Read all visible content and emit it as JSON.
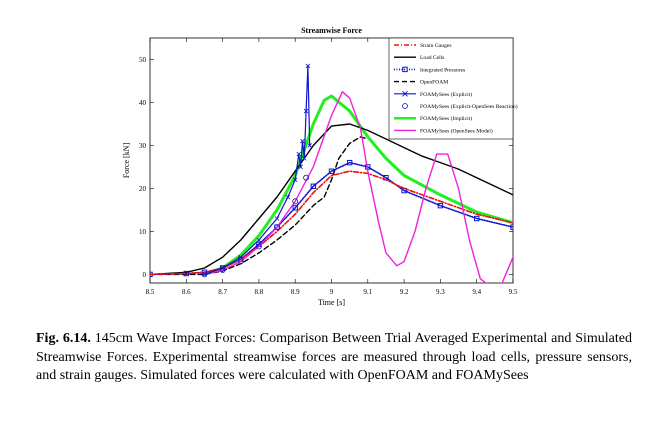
{
  "chart_data": {
    "type": "line",
    "title": "Streamwise Force",
    "xlabel": "Time [s]",
    "ylabel": "Force [kN]",
    "xlim": [
      8.5,
      9.5
    ],
    "ylim": [
      -2,
      55
    ],
    "xticks": [
      "8.5",
      "8.6",
      "8.7",
      "8.8",
      "8.9",
      "9",
      "9.1",
      "9.2",
      "9.3",
      "9.4",
      "9.5"
    ],
    "yticks": [
      "0",
      "10",
      "20",
      "30",
      "40",
      "50"
    ],
    "grid": false,
    "legend_position": "top-right",
    "series": [
      {
        "name": "Strain Gauges",
        "color": "#ee1111",
        "style": "dashdot",
        "x": [
          8.5,
          8.6,
          8.65,
          8.7,
          8.75,
          8.8,
          8.85,
          8.9,
          8.95,
          9.0,
          9.05,
          9.1,
          9.15,
          9.2,
          9.3,
          9.4,
          9.5
        ],
        "y": [
          0,
          0.2,
          0.5,
          1.5,
          3.5,
          6.5,
          10,
          14,
          19,
          23,
          24,
          23.5,
          22,
          20,
          17,
          14,
          12
        ]
      },
      {
        "name": "Load Cells",
        "color": "#000000",
        "style": "solid",
        "x": [
          8.5,
          8.6,
          8.65,
          8.7,
          8.75,
          8.8,
          8.85,
          8.9,
          8.95,
          9.0,
          9.05,
          9.1,
          9.15,
          9.2,
          9.25,
          9.3,
          9.35,
          9.4,
          9.45,
          9.5
        ],
        "y": [
          0,
          0.5,
          1.5,
          4,
          8,
          13,
          18,
          24,
          30,
          34.5,
          35,
          33.5,
          31.5,
          29.5,
          27.5,
          26,
          24.5,
          22.5,
          20.5,
          18.5
        ]
      },
      {
        "name": "Integrated Pressures",
        "color": "#0a16cc",
        "style": "dotted",
        "marker": "square",
        "x": [
          8.5,
          8.6,
          8.65,
          8.7,
          8.75,
          8.8,
          8.85,
          8.9,
          8.95,
          9.0,
          9.05,
          9.1,
          9.15,
          9.2,
          9.3,
          9.4,
          9.5
        ],
        "y": [
          0,
          0.2,
          0.5,
          1.5,
          3.5,
          7,
          11,
          15.5,
          20.5,
          24,
          26,
          25,
          22.5,
          19.5,
          16,
          13,
          11
        ]
      },
      {
        "name": "OpenFOAM",
        "color": "#000000",
        "style": "dashed",
        "x": [
          8.5,
          8.65,
          8.7,
          8.75,
          8.8,
          8.85,
          8.9,
          8.95,
          8.98,
          9.0,
          9.02,
          9.05,
          9.08,
          9.1
        ],
        "y": [
          0,
          0,
          0.8,
          2.5,
          5,
          8,
          11.5,
          16,
          18,
          22,
          27,
          30.5,
          32,
          31.5
        ]
      },
      {
        "name": "FOAMySees (Explicit)",
        "color": "#0a16cc",
        "style": "solid",
        "marker": "x",
        "x": [
          8.65,
          8.7,
          8.75,
          8.8,
          8.85,
          8.88,
          8.9,
          8.91,
          8.915,
          8.92,
          8.925,
          8.93,
          8.935,
          8.94
        ],
        "y": [
          0,
          1.5,
          4,
          8,
          13,
          18,
          22,
          28,
          25,
          31,
          27,
          38,
          48.5,
          30
        ]
      },
      {
        "name": "FOAMySees (Explicit-OpenSees Reaction)",
        "color": "#0a16cc",
        "style": "none",
        "marker": "circle",
        "x": [
          8.65,
          8.7,
          8.75,
          8.8,
          8.85,
          8.9,
          8.93
        ],
        "y": [
          0,
          1,
          3,
          6.5,
          11,
          17,
          22.5
        ]
      },
      {
        "name": "FOAMySees (Implicit)",
        "color": "#22ee22",
        "style": "solid",
        "x": [
          8.65,
          8.7,
          8.75,
          8.8,
          8.85,
          8.9,
          8.95,
          8.98,
          9.0,
          9.05,
          9.1,
          9.15,
          9.2,
          9.3,
          9.4,
          9.5
        ],
        "y": [
          0,
          1.5,
          4.5,
          9,
          15,
          23,
          35,
          40.5,
          41.5,
          38,
          32,
          27,
          23,
          18.5,
          14.5,
          12
        ]
      },
      {
        "name": "FOAMySees (OpenSees Model)",
        "color": "#ee22dd",
        "style": "solid",
        "x": [
          8.65,
          8.7,
          8.75,
          8.8,
          8.85,
          8.9,
          8.95,
          9.0,
          9.03,
          9.05,
          9.08,
          9.1,
          9.13,
          9.15,
          9.18,
          9.2,
          9.23,
          9.26,
          9.29,
          9.32,
          9.35,
          9.38,
          9.41,
          9.44,
          9.47,
          9.5
        ],
        "y": [
          0,
          1,
          3,
          6.5,
          11,
          17,
          25,
          37,
          42.5,
          41,
          34,
          24,
          12,
          5,
          2,
          3,
          10,
          20,
          28,
          28,
          20,
          8,
          -1,
          -3,
          -2,
          4
        ]
      }
    ]
  },
  "caption": {
    "lead": "Fig. 6.14.",
    "text": " 145cm Wave Impact Forces: Comparison Between Trial Averaged Experimental and Simulated Streamwise Forces. Experimental streamwise forces are measured through load cells, pressure sensors, and strain gauges.  Simulated forces were calculated with OpenFOAM and FOAMySees"
  }
}
